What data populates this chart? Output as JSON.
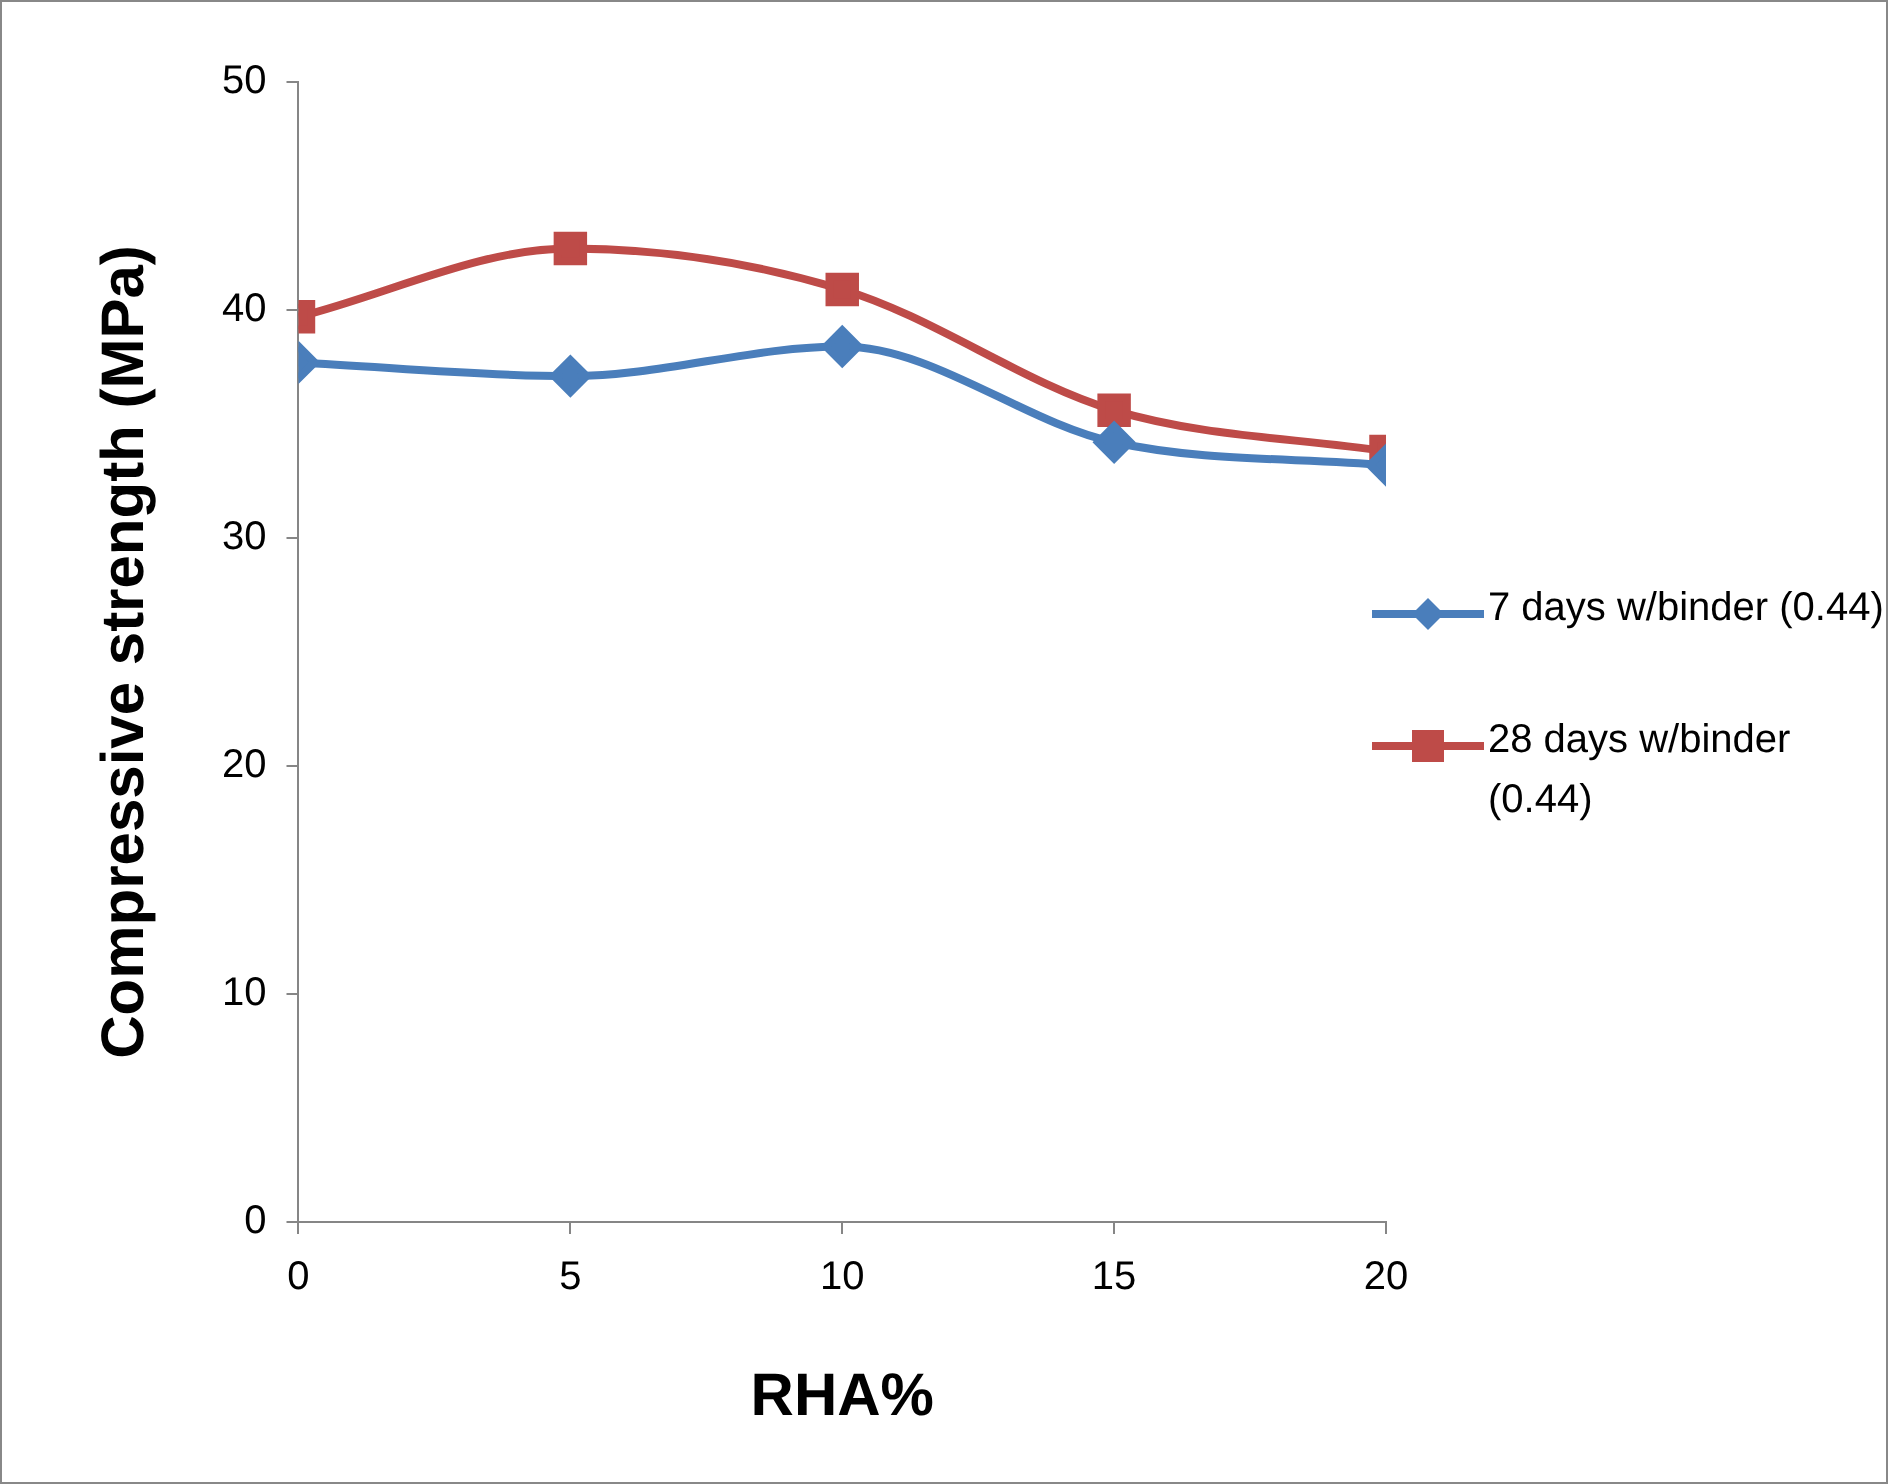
{
  "chart_data": {
    "type": "line",
    "xlabel": "RHA%",
    "ylabel": "Compressive strength (MPa)",
    "x": [
      0,
      5,
      10,
      15,
      20
    ],
    "series": [
      {
        "name": "7 days w/binder (0.44)",
        "color": "#4a7ebb",
        "marker": "diamond",
        "values": [
          37.7,
          37.1,
          38.4,
          34.2,
          33.2
        ]
      },
      {
        "name": "28 days w/binder (0.44)",
        "color": "#be4b48",
        "marker": "square",
        "values": [
          39.7,
          42.7,
          40.9,
          35.6,
          33.8
        ]
      }
    ],
    "xlim": [
      0,
      20
    ],
    "xticks": [
      0,
      5,
      10,
      15,
      20
    ],
    "ylim": [
      0,
      50
    ],
    "yticks": [
      0,
      10,
      20,
      30,
      40,
      50
    ],
    "grid": false,
    "legend": "right"
  }
}
